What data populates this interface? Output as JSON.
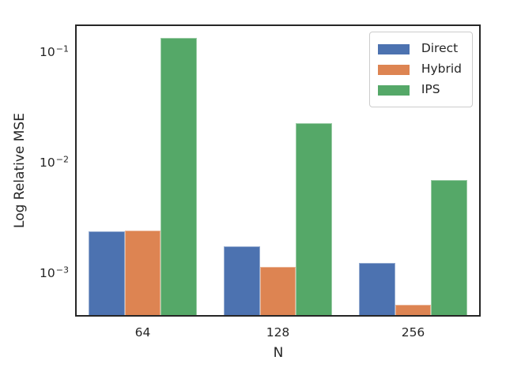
{
  "chart_data": {
    "type": "bar",
    "title": "",
    "xlabel": "N",
    "ylabel": "Log Relative MSE",
    "categories": [
      "64",
      "128",
      "256"
    ],
    "series": [
      {
        "name": "Direct",
        "color": "#4C72B0",
        "values": [
          0.0023,
          0.0017,
          0.0012
        ]
      },
      {
        "name": "Hybrid",
        "color": "#DD8452",
        "values": [
          0.00235,
          0.0011,
          0.0005
        ]
      },
      {
        "name": "IPS",
        "color": "#55A868",
        "values": [
          0.13,
          0.022,
          0.0067
        ]
      }
    ],
    "yscale": "log",
    "ylim": [
      0.00039,
      0.172
    ],
    "yticks": [
      {
        "base": "10",
        "exp": "−1",
        "value": 0.1
      },
      {
        "base": "10",
        "exp": "−2",
        "value": 0.01
      },
      {
        "base": "10",
        "exp": "−3",
        "value": 0.001
      }
    ],
    "bar_group_width": 0.8,
    "grid": false,
    "legend": {
      "position": "upper right"
    },
    "colors": {
      "frame": "#262626",
      "text": "#262626",
      "background": "#ffffff",
      "legend_border": "#cccccc"
    }
  }
}
